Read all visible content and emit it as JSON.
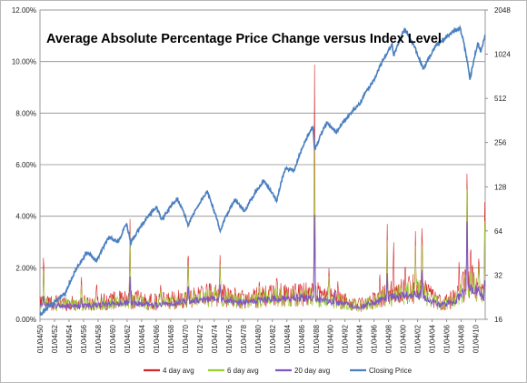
{
  "chart_data": {
    "type": "line",
    "title": "Average Absolute Percentage Price Change versus Index Level",
    "xlabel": "",
    "ylabel": "",
    "y_left": {
      "scale": "linear",
      "range": [
        0,
        12
      ],
      "unit": "%",
      "ticks": [
        "0.00%",
        "2.00%",
        "4.00%",
        "6.00%",
        "8.00%",
        "10.00%",
        "12.00%"
      ]
    },
    "y_right": {
      "scale": "log2",
      "range": [
        16,
        2048
      ],
      "ticks": [
        "16",
        "32",
        "64",
        "128",
        "256",
        "512",
        "1024",
        "2048"
      ]
    },
    "x_range": [
      1950,
      2011.3
    ],
    "x_ticks": [
      "01/04/50",
      "01/04/52",
      "01/04/54",
      "01/04/56",
      "01/04/58",
      "01/04/60",
      "01/04/62",
      "01/04/64",
      "01/04/66",
      "01/04/68",
      "01/04/70",
      "01/04/72",
      "01/04/74",
      "01/04/76",
      "01/04/78",
      "01/04/80",
      "01/04/82",
      "01/04/84",
      "01/04/86",
      "01/04/88",
      "01/04/90",
      "01/04/92",
      "01/04/94",
      "01/04/96",
      "01/04/98",
      "01/04/00",
      "01/04/02",
      "01/04/04",
      "01/04/06",
      "01/04/08",
      "01/04/10"
    ],
    "grid": "horizontal",
    "legend_position": "bottom",
    "series": [
      {
        "name": "4 day avg",
        "color": "#d62728",
        "axis": "left",
        "points": [
          [
            1950.0,
            0.5
          ],
          [
            1950.5,
            2.8
          ],
          [
            1951.0,
            0.9
          ],
          [
            1952.0,
            0.6
          ],
          [
            1953.5,
            0.9
          ],
          [
            1955.7,
            1.8
          ],
          [
            1957.8,
            1.5
          ],
          [
            1960.0,
            1.0
          ],
          [
            1962.4,
            4.0
          ],
          [
            1963.5,
            1.2
          ],
          [
            1966.6,
            1.5
          ],
          [
            1970.4,
            3.0
          ],
          [
            1971.5,
            1.0
          ],
          [
            1974.8,
            2.6
          ],
          [
            1978.0,
            1.0
          ],
          [
            1980.2,
            1.7
          ],
          [
            1982.6,
            1.8
          ],
          [
            1984.0,
            1.0
          ],
          [
            1986.0,
            1.5
          ],
          [
            1987.5,
            1.5
          ],
          [
            1987.8,
            10.0
          ],
          [
            1988.3,
            1.5
          ],
          [
            1989.8,
            2.3
          ],
          [
            1991.0,
            1.5
          ],
          [
            1994.0,
            0.8
          ],
          [
            1996.8,
            1.8
          ],
          [
            1997.8,
            4.0
          ],
          [
            1998.7,
            3.0
          ],
          [
            2000.3,
            2.5
          ],
          [
            2001.7,
            3.5
          ],
          [
            2002.6,
            4.0
          ],
          [
            2003.5,
            1.5
          ],
          [
            2006.0,
            1.0
          ],
          [
            2007.7,
            2.3
          ],
          [
            2008.8,
            6.4
          ],
          [
            2009.3,
            3.0
          ],
          [
            2010.4,
            2.6
          ],
          [
            2011.0,
            1.5
          ],
          [
            2011.25,
            5.1
          ]
        ]
      },
      {
        "name": "6 day avg",
        "color": "#9acd32",
        "axis": "left",
        "points": [
          [
            1950.0,
            0.5
          ],
          [
            1950.5,
            2.2
          ],
          [
            1952.0,
            0.5
          ],
          [
            1955.7,
            1.5
          ],
          [
            1962.4,
            3.4
          ],
          [
            1966.6,
            1.2
          ],
          [
            1970.4,
            2.6
          ],
          [
            1974.8,
            2.2
          ],
          [
            1980.2,
            1.4
          ],
          [
            1987.8,
            6.8
          ],
          [
            1989.8,
            1.9
          ],
          [
            1997.8,
            3.3
          ],
          [
            2001.7,
            2.9
          ],
          [
            2002.6,
            3.3
          ],
          [
            2008.8,
            5.7
          ],
          [
            2010.4,
            2.2
          ],
          [
            2011.25,
            4.3
          ]
        ]
      },
      {
        "name": "20 day avg",
        "color": "#7e57c2",
        "axis": "left",
        "points": [
          [
            1950.0,
            0.4
          ],
          [
            1950.5,
            1.0
          ],
          [
            1955.7,
            0.9
          ],
          [
            1962.4,
            1.7
          ],
          [
            1970.4,
            1.5
          ],
          [
            1974.8,
            1.4
          ],
          [
            1987.8,
            4.1
          ],
          [
            1990.6,
            1.1
          ],
          [
            1997.8,
            1.9
          ],
          [
            2002.6,
            2.1
          ],
          [
            2008.8,
            4.3
          ],
          [
            2010.4,
            1.3
          ],
          [
            2011.25,
            1.6
          ]
        ]
      },
      {
        "name": "Closing Price",
        "color": "#4a7fc1",
        "axis": "right",
        "points": [
          [
            1950.0,
            17
          ],
          [
            1953.5,
            24
          ],
          [
            1956.5,
            46
          ],
          [
            1957.8,
            40
          ],
          [
            1959.5,
            58
          ],
          [
            1960.8,
            54
          ],
          [
            1961.9,
            71
          ],
          [
            1962.5,
            53
          ],
          [
            1966.0,
            93
          ],
          [
            1966.8,
            76
          ],
          [
            1968.9,
            107
          ],
          [
            1970.4,
            70
          ],
          [
            1973.0,
            118
          ],
          [
            1974.8,
            63
          ],
          [
            1976.8,
            105
          ],
          [
            1978.2,
            87
          ],
          [
            1980.8,
            140
          ],
          [
            1982.6,
            103
          ],
          [
            1983.8,
            170
          ],
          [
            1985.0,
            165
          ],
          [
            1987.6,
            330
          ],
          [
            1987.8,
            224
          ],
          [
            1989.5,
            350
          ],
          [
            1990.8,
            300
          ],
          [
            1994.0,
            470
          ],
          [
            1996.0,
            680
          ],
          [
            1998.5,
            1190
          ],
          [
            1998.7,
            990
          ],
          [
            2000.2,
            1520
          ],
          [
            2002.8,
            800
          ],
          [
            2004.5,
            1170
          ],
          [
            2007.8,
            1560
          ],
          [
            2009.2,
            680
          ],
          [
            2010.3,
            1210
          ],
          [
            2010.7,
            1050
          ],
          [
            2011.25,
            1360
          ]
        ]
      }
    ]
  }
}
